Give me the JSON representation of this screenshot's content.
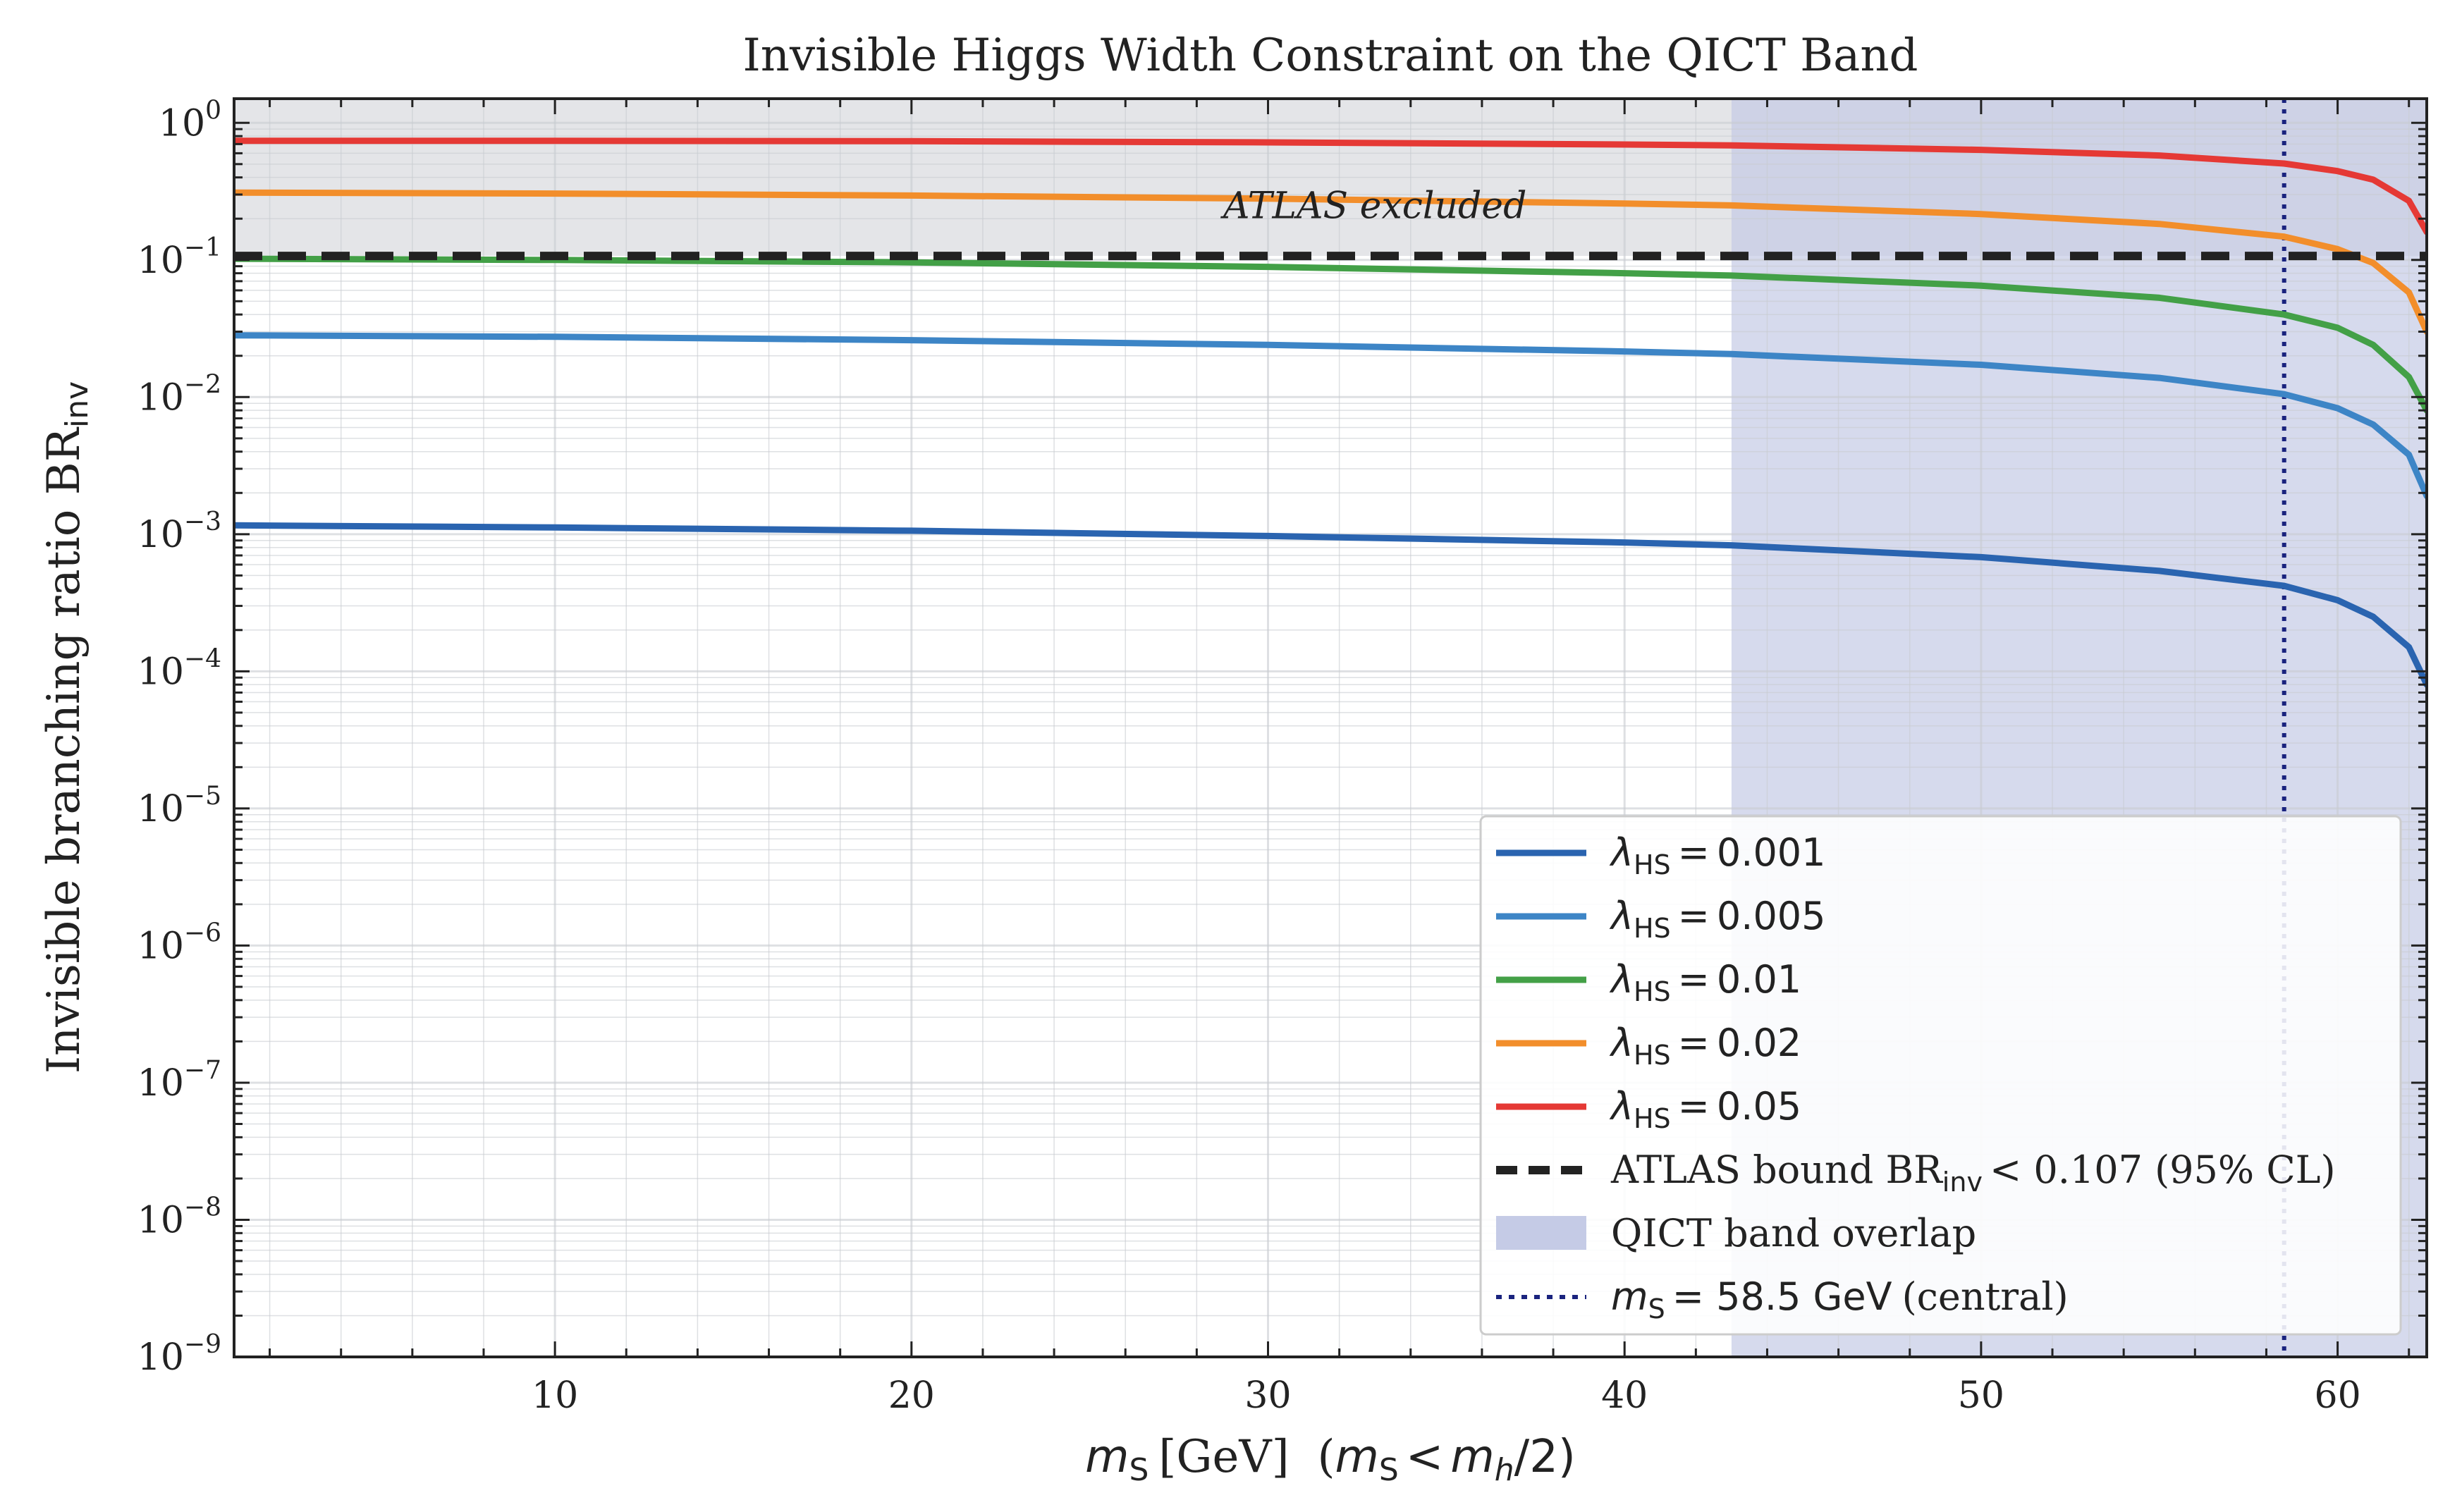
{
  "chart_data": {
    "type": "line",
    "title": "Invisible Higgs Width Constraint on the QICT Band",
    "xlabel": {
      "var": "m",
      "var_sub": "S",
      "unit": "[GeV]",
      "paren_open": "(",
      "paren_var": "m",
      "paren_var_sub": "S",
      "paren_op": "<",
      "paren_rhs_var": "m",
      "paren_rhs_sub": "h",
      "paren_rhs_tail": "/2)"
    },
    "ylabel": {
      "text": "Invisible branching ratio BR",
      "sub": "inv"
    },
    "x_scale": "linear",
    "y_scale": "log",
    "xlim": [
      1,
      62.5
    ],
    "ylim": [
      1e-09,
      1.5
    ],
    "grid": true,
    "x_ticks": [
      10,
      20,
      30,
      40,
      50,
      60
    ],
    "x_tick_labels": [
      "10",
      "20",
      "30",
      "40",
      "50",
      "60"
    ],
    "y_ticks": [
      -9,
      -8,
      -7,
      -6,
      -5,
      -4,
      -3,
      -2,
      -1,
      0
    ],
    "y_tick_base": "10",
    "y_tick_exponents": [
      "−9",
      "−8",
      "−7",
      "−6",
      "−5",
      "−4",
      "−3",
      "−2",
      "−1",
      "0"
    ],
    "series": [
      {
        "lambda": "0.001",
        "color": "#2a64b0",
        "x": [
          1,
          10,
          20,
          30,
          40,
          43,
          50,
          55,
          58.5,
          60,
          61,
          62,
          62.5
        ],
        "y": [
          0.00116,
          0.00112,
          0.00106,
          0.00097,
          0.00087,
          0.00083,
          0.00068,
          0.00054,
          0.00042,
          0.00033,
          0.00025,
          0.00015,
          8e-05
        ]
      },
      {
        "lambda": "0.005",
        "color": "#3d85c6",
        "x": [
          1,
          10,
          20,
          30,
          40,
          43,
          50,
          55,
          58.5,
          60,
          61,
          62,
          62.5
        ],
        "y": [
          0.0282,
          0.0275,
          0.026,
          0.024,
          0.0215,
          0.0206,
          0.0172,
          0.0138,
          0.0105,
          0.0083,
          0.0063,
          0.0038,
          0.0019
        ]
      },
      {
        "lambda": "0.01",
        "color": "#43a047",
        "x": [
          1,
          10,
          20,
          30,
          40,
          43,
          50,
          55,
          58.5,
          60,
          61,
          62,
          62.5
        ],
        "y": [
          0.102,
          0.1,
          0.096,
          0.089,
          0.08,
          0.077,
          0.065,
          0.053,
          0.04,
          0.032,
          0.024,
          0.014,
          0.008
        ]
      },
      {
        "lambda": "0.02",
        "color": "#f28e2b",
        "x": [
          1,
          10,
          20,
          30,
          40,
          43,
          50,
          55,
          58.5,
          60,
          61,
          62,
          62.5
        ],
        "y": [
          0.31,
          0.305,
          0.295,
          0.28,
          0.258,
          0.25,
          0.216,
          0.183,
          0.148,
          0.12,
          0.095,
          0.058,
          0.03
        ]
      },
      {
        "lambda": "0.05",
        "color": "#e53935",
        "x": [
          1,
          10,
          20,
          30,
          40,
          43,
          50,
          55,
          58.5,
          60,
          61,
          62,
          62.5
        ],
        "y": [
          0.74,
          0.74,
          0.735,
          0.72,
          0.695,
          0.685,
          0.635,
          0.578,
          0.505,
          0.445,
          0.385,
          0.27,
          0.16
        ]
      }
    ],
    "atlas_bound": {
      "value": 0.107,
      "color": "#222222"
    },
    "excluded_region": {
      "ymin": 0.107,
      "ymax": 1.5,
      "label": "ATLAS excluded",
      "label_x": 33,
      "label_y": 0.25
    },
    "qict_band": {
      "xmin": 43,
      "xmax": 62.5,
      "color": "#c5cbe6"
    },
    "central_line": {
      "x": 58.5,
      "color": "#1a237e"
    },
    "legend": {
      "placement": "lower-right",
      "lambda_symbol": "λ",
      "lambda_sub": "HS",
      "equals": "=",
      "atlas_text": "ATLAS bound BR",
      "atlas_sub": "inv",
      "atlas_tail": "< 0.107 (95% CL)",
      "qict_text": "QICT band overlap",
      "central_var": "m",
      "central_sub": "S",
      "central_value": "= 58.5 GeV",
      "central_tail": "(central)"
    }
  }
}
